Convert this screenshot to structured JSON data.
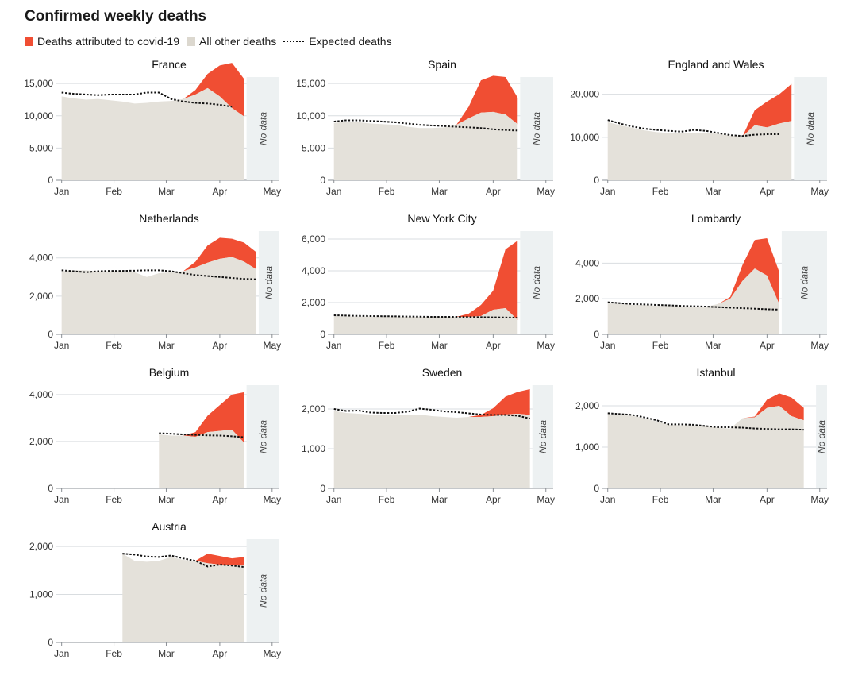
{
  "title": "Confirmed weekly deaths",
  "legend": {
    "covid": "Deaths attributed to covid-19",
    "other": "All other deaths",
    "expected": "Expected deaths"
  },
  "colors": {
    "covid": "#f04e33",
    "other": "#e4e1da",
    "nodata": "#edf1f2",
    "grid": "#d9dde0",
    "expected": "#111111"
  },
  "months": [
    "Jan",
    "Feb",
    "Mar",
    "Apr",
    "May"
  ],
  "no_data_label": "No data",
  "chart_data": [
    {
      "type": "area",
      "title": "France",
      "ylim": [
        0,
        16000
      ],
      "yticks": [
        0,
        5000,
        10000,
        15000
      ],
      "yticklabels": [
        "0",
        "5,000",
        "10,000",
        "15,000"
      ],
      "weeks": [
        1,
        2,
        3,
        4,
        5,
        6,
        7,
        8,
        9,
        10,
        11,
        12,
        13,
        14,
        15,
        16
      ],
      "other": [
        13000,
        12700,
        12500,
        12600,
        12400,
        12200,
        11900,
        12000,
        12200,
        12300,
        12600,
        13300,
        14300,
        13000,
        11200,
        9900
      ],
      "covid": [
        0,
        0,
        0,
        0,
        0,
        0,
        0,
        0,
        0,
        0,
        0,
        700,
        2200,
        4800,
        7000,
        5800
      ],
      "expected": [
        13600,
        13400,
        13300,
        13200,
        13300,
        13300,
        13300,
        13600,
        13600,
        12600,
        12200,
        12000,
        11900,
        11700,
        11400,
        null
      ],
      "nodata_from": 16.2
    },
    {
      "type": "area",
      "title": "Spain",
      "ylim": [
        0,
        16000
      ],
      "yticks": [
        0,
        5000,
        10000,
        15000
      ],
      "yticklabels": [
        "0",
        "5,000",
        "10,000",
        "15,000"
      ],
      "weeks": [
        1,
        2,
        3,
        4,
        5,
        6,
        7,
        8,
        9,
        10,
        11,
        12,
        13,
        14,
        15,
        16
      ],
      "other": [
        8900,
        9100,
        9000,
        8800,
        8700,
        8600,
        8300,
        8100,
        8100,
        8200,
        8600,
        9600,
        10500,
        10600,
        10200,
        8700
      ],
      "covid": [
        0,
        0,
        0,
        0,
        0,
        0,
        0,
        0,
        0,
        0,
        0,
        1800,
        5000,
        5600,
        5800,
        4100
      ],
      "expected": [
        9100,
        9300,
        9300,
        9200,
        9100,
        9000,
        8800,
        8600,
        8500,
        8400,
        8300,
        8200,
        8100,
        7900,
        7800,
        7700
      ],
      "nodata_from": 16.2
    },
    {
      "type": "area",
      "title": "England and Wales",
      "ylim": [
        0,
        24000
      ],
      "yticks": [
        0,
        10000,
        20000
      ],
      "yticklabels": [
        "0",
        "10,000",
        "20,000"
      ],
      "weeks": [
        1,
        2,
        3,
        4,
        5,
        6,
        7,
        8,
        9,
        10,
        11,
        12,
        13,
        14,
        15,
        16
      ],
      "other": [
        13500,
        12800,
        12200,
        11600,
        11200,
        11000,
        10900,
        11000,
        11100,
        10800,
        10400,
        10200,
        12800,
        12300,
        13200,
        13800
      ],
      "covid": [
        0,
        0,
        0,
        0,
        0,
        0,
        0,
        0,
        0,
        0,
        0,
        0,
        3500,
        6000,
        6800,
        8600
      ],
      "expected": [
        14000,
        13200,
        12500,
        12000,
        11700,
        11500,
        11300,
        11700,
        11500,
        11000,
        10500,
        10300,
        10600,
        10700,
        10700,
        null
      ],
      "nodata_from": 16.2
    },
    {
      "type": "area",
      "title": "Netherlands",
      "ylim": [
        0,
        5400
      ],
      "yticks": [
        0,
        2000,
        4000
      ],
      "yticklabels": [
        "0",
        "2,000",
        "4,000"
      ],
      "weeks": [
        1,
        2,
        3,
        4,
        5,
        6,
        7,
        8,
        9,
        10,
        11,
        12,
        13,
        14,
        15,
        16,
        17
      ],
      "other": [
        3300,
        3350,
        3350,
        3300,
        3300,
        3300,
        3250,
        3000,
        3200,
        3250,
        3300,
        3500,
        3750,
        3950,
        4050,
        3800,
        3400
      ],
      "covid": [
        0,
        0,
        0,
        0,
        0,
        0,
        0,
        0,
        0,
        0,
        0,
        300,
        900,
        1100,
        950,
        1000,
        900
      ],
      "expected": [
        3350,
        3300,
        3250,
        3300,
        3320,
        3320,
        3330,
        3350,
        3350,
        3300,
        3200,
        3100,
        3050,
        3000,
        2950,
        2900,
        2880
      ],
      "nodata_from": 17.2
    },
    {
      "type": "area",
      "title": "New York City",
      "ylim": [
        0,
        6500
      ],
      "yticks": [
        0,
        2000,
        4000,
        6000
      ],
      "yticklabels": [
        "0",
        "2,000",
        "4,000",
        "6,000"
      ],
      "weeks": [
        1,
        2,
        3,
        4,
        5,
        6,
        7,
        8,
        9,
        10,
        11,
        12,
        13,
        14,
        15,
        16
      ],
      "other": [
        1150,
        1130,
        1120,
        1120,
        1120,
        1100,
        1100,
        1100,
        1100,
        1100,
        1100,
        1100,
        1150,
        1550,
        1650,
        900
      ],
      "covid": [
        0,
        0,
        0,
        0,
        0,
        0,
        0,
        0,
        0,
        0,
        0,
        200,
        700,
        1200,
        3700,
        5000
      ],
      "expected": [
        1200,
        1180,
        1160,
        1150,
        1140,
        1130,
        1120,
        1110,
        1100,
        1100,
        1100,
        1090,
        1080,
        1070,
        1060,
        1050
      ],
      "nodata_from": 16.2
    },
    {
      "type": "area",
      "title": "Lombardy",
      "ylim": [
        0,
        5800
      ],
      "yticks": [
        0,
        2000,
        4000
      ],
      "yticklabels": [
        "0",
        "2,000",
        "4,000"
      ],
      "weeks": [
        1,
        2,
        3,
        4,
        5,
        6,
        7,
        8,
        9,
        10,
        11,
        12,
        13,
        14,
        15
      ],
      "other": [
        1750,
        1700,
        1650,
        1650,
        1600,
        1600,
        1580,
        1560,
        1550,
        1700,
        2000,
        3000,
        3700,
        3300,
        1700
      ],
      "covid": [
        0,
        0,
        0,
        0,
        0,
        0,
        0,
        0,
        0,
        0,
        100,
        900,
        1600,
        2100,
        1800
      ],
      "expected": [
        1800,
        1750,
        1700,
        1680,
        1650,
        1630,
        1600,
        1580,
        1560,
        1530,
        1500,
        1470,
        1440,
        1410,
        1390
      ],
      "nodata_from": 15.2
    },
    {
      "type": "area",
      "title": "Belgium",
      "ylim": [
        0,
        4400
      ],
      "yticks": [
        0,
        2000,
        4000
      ],
      "yticklabels": [
        "0",
        "2,000",
        "4,000"
      ],
      "weeks": [
        9,
        10,
        11,
        12,
        13,
        14,
        15,
        16
      ],
      "other": [
        2300,
        2250,
        2250,
        2200,
        2400,
        2450,
        2500,
        1950
      ],
      "covid": [
        0,
        0,
        0,
        200,
        700,
        1100,
        1500,
        2150
      ],
      "expected": [
        2350,
        2330,
        2300,
        2280,
        2260,
        2250,
        2220,
        2180
      ],
      "nodata_from": 16.2
    },
    {
      "type": "area",
      "title": "Sweden",
      "ylim": [
        0,
        2600
      ],
      "yticks": [
        0,
        1000,
        2000
      ],
      "yticklabels": [
        "0",
        "1,000",
        "2,000"
      ],
      "weeks": [
        1,
        2,
        3,
        4,
        5,
        6,
        7,
        8,
        9,
        10,
        11,
        12,
        13,
        14,
        15,
        16,
        17
      ],
      "other": [
        1950,
        1900,
        1880,
        1860,
        1850,
        1840,
        1850,
        1860,
        1820,
        1800,
        1780,
        1800,
        1800,
        1820,
        1860,
        1880,
        1850
      ],
      "covid": [
        0,
        0,
        0,
        0,
        0,
        0,
        0,
        0,
        0,
        0,
        0,
        0,
        50,
        200,
        450,
        550,
        650
      ],
      "expected": [
        2000,
        1950,
        1960,
        1910,
        1900,
        1900,
        1930,
        2010,
        1980,
        1940,
        1920,
        1890,
        1860,
        1850,
        1850,
        1830,
        1760
      ],
      "nodata_from": 17.2
    },
    {
      "type": "area",
      "title": "Istanbul",
      "ylim": [
        0,
        2500
      ],
      "yticks": [
        0,
        1000,
        2000
      ],
      "yticklabels": [
        "0",
        "1,000",
        "2,000"
      ],
      "weeks": [
        1,
        2,
        3,
        4,
        5,
        6,
        7,
        8,
        9,
        10,
        11,
        12,
        13,
        14,
        15,
        16,
        17
      ],
      "other": [
        1800,
        1780,
        1760,
        1700,
        1620,
        1540,
        1530,
        1530,
        1500,
        1470,
        1450,
        1700,
        1720,
        1950,
        2000,
        1750,
        1650
      ],
      "covid": [
        0,
        0,
        0,
        0,
        0,
        0,
        0,
        0,
        0,
        0,
        0,
        0,
        20,
        200,
        300,
        450,
        300
      ],
      "expected": [
        1820,
        1800,
        1780,
        1720,
        1650,
        1550,
        1550,
        1540,
        1510,
        1480,
        1480,
        1470,
        1450,
        1440,
        1430,
        1430,
        1420
      ],
      "nodata_from": 18.0
    },
    {
      "type": "area",
      "title": "Austria",
      "ylim": [
        0,
        2150
      ],
      "yticks": [
        0,
        1000,
        2000
      ],
      "yticklabels": [
        "0",
        "1,000",
        "2,000"
      ],
      "weeks": [
        6,
        7,
        8,
        9,
        10,
        11,
        12,
        13,
        14,
        15,
        16
      ],
      "other": [
        1850,
        1700,
        1680,
        1700,
        1780,
        1720,
        1700,
        1650,
        1620,
        1600,
        1600
      ],
      "covid": [
        0,
        0,
        0,
        0,
        0,
        0,
        0,
        200,
        180,
        150,
        180
      ],
      "expected": [
        1850,
        1830,
        1790,
        1780,
        1810,
        1750,
        1700,
        1580,
        1620,
        1600,
        1570
      ],
      "nodata_from": 16.2
    }
  ]
}
